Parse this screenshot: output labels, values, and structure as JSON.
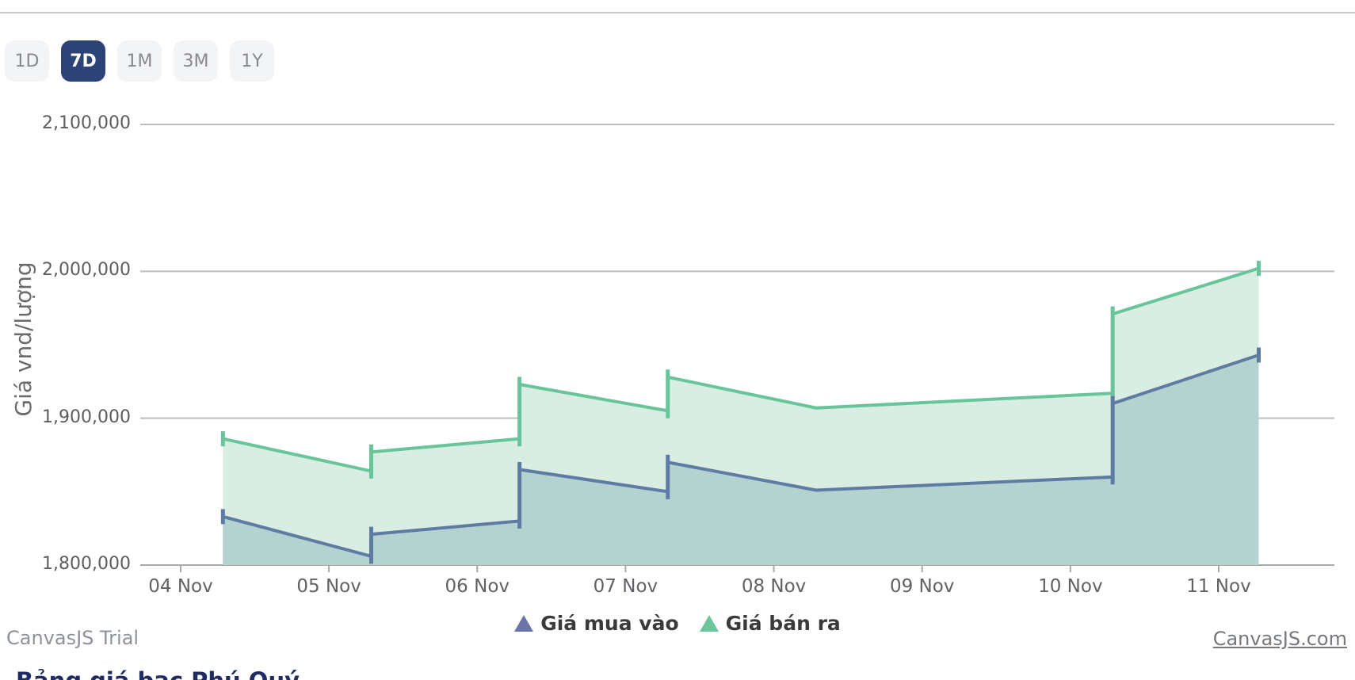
{
  "toolbar": {
    "buttons": [
      {
        "label": "1D",
        "active": false
      },
      {
        "label": "7D",
        "active": true
      },
      {
        "label": "1M",
        "active": false
      },
      {
        "label": "3M",
        "active": false
      },
      {
        "label": "1Y",
        "active": false
      }
    ]
  },
  "chart_data": {
    "type": "area",
    "title": "",
    "ylabel": "Giá vnd/lượng",
    "unit": "VND/lượng",
    "x_tick_labels": [
      "04 Nov",
      "05 Nov",
      "06 Nov",
      "07 Nov",
      "08 Nov",
      "09 Nov",
      "10 Nov",
      "11 Nov"
    ],
    "x_tick_days": [
      0,
      1,
      2,
      3,
      4,
      5,
      6,
      7
    ],
    "y_ticks": [
      {
        "value": 1800000,
        "label": "1,800,000"
      },
      {
        "value": 1900000,
        "label": "1,900,000"
      },
      {
        "value": 2000000,
        "label": "2,000,000"
      },
      {
        "value": 2100000,
        "label": "2,100,000"
      }
    ],
    "y_range": [
      1800000,
      2100000
    ],
    "grid": true,
    "legend_position": "bottom",
    "series": [
      {
        "name": "Giá bán ra",
        "line_color": "#68C59B",
        "fill_color": "#D9EDE2",
        "marker_color": "#6BC69B",
        "points": [
          [
            0.285,
            1886000
          ],
          [
            1.285,
            1864000
          ],
          [
            1.285,
            1877000
          ],
          [
            2.285,
            1886000
          ],
          [
            2.285,
            1923000
          ],
          [
            3.285,
            1905000
          ],
          [
            3.285,
            1928000
          ],
          [
            4.285,
            1907000
          ],
          [
            6.285,
            1917000
          ],
          [
            6.285,
            1971000
          ],
          [
            7.27,
            2002000
          ]
        ]
      },
      {
        "name": "Giá mua vào",
        "line_color": "#5E7CA3",
        "fill_color": "#B4D2CF",
        "marker_color": "#6A74AA",
        "points": [
          [
            0.285,
            1833000
          ],
          [
            1.285,
            1806000
          ],
          [
            1.285,
            1821000
          ],
          [
            2.285,
            1830000
          ],
          [
            2.285,
            1865000
          ],
          [
            3.285,
            1850000
          ],
          [
            3.285,
            1870000
          ],
          [
            4.285,
            1851000
          ],
          [
            6.285,
            1860000
          ],
          [
            6.285,
            1910000
          ],
          [
            7.27,
            1943000
          ]
        ]
      }
    ]
  },
  "legend": {
    "items": [
      {
        "label": "Giá mua vào",
        "color": "#6A74AA"
      },
      {
        "label": "Giá bán ra",
        "color": "#6BC69B"
      }
    ]
  },
  "footer": {
    "watermark_left": "CanvasJS Trial",
    "watermark_right": "CanvasJS.com",
    "link_text": "Bảng giá bạc Phú Quý"
  }
}
